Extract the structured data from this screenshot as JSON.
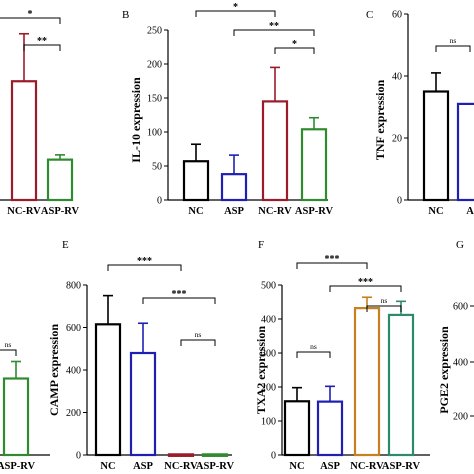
{
  "colors": {
    "NC": "#000000",
    "ASP": "#1f1fb4",
    "NC-RV": "#9b1b2a",
    "ASP-RV": "#2e8b2e",
    "NC-RV_txa2": "#c8801e",
    "ASP-RV_txa2": "#2e8b6a"
  },
  "chart_data": [
    {
      "id": "A",
      "type": "bar",
      "panel_label": "",
      "ylabel": "",
      "categories": [
        "",
        "",
        "NC-RV",
        "ASP-RV"
      ],
      "values": [
        null,
        null,
        50,
        17
      ],
      "errors": [
        null,
        null,
        20,
        2
      ],
      "significance": [
        {
          "pair": [
            1,
            3
          ],
          "label": "*"
        },
        {
          "pair": [
            2,
            3
          ],
          "label": "**"
        }
      ]
    },
    {
      "id": "B",
      "type": "bar",
      "panel_label": "B",
      "ylabel": "IL-10 expression",
      "categories": [
        "NC",
        "ASP",
        "NC-RV",
        "ASP-RV"
      ],
      "values": [
        57,
        38,
        145,
        104
      ],
      "errors": [
        25,
        28,
        50,
        17
      ],
      "ylim": [
        0,
        250
      ],
      "yticks": [
        0,
        50,
        100,
        150,
        200,
        250
      ],
      "significance": [
        {
          "pair": [
            0,
            2
          ],
          "label": "*"
        },
        {
          "pair": [
            1,
            3
          ],
          "label": "**"
        },
        {
          "pair": [
            2,
            3
          ],
          "label": "*"
        }
      ]
    },
    {
      "id": "C",
      "type": "bar",
      "panel_label": "C",
      "ylabel": "TNF expression",
      "categories": [
        "NC",
        "A"
      ],
      "values": [
        35,
        31
      ],
      "errors": [
        6,
        0
      ],
      "ylim": [
        0,
        60
      ],
      "yticks": [
        0,
        20,
        40,
        60
      ],
      "significance": [
        {
          "pair": [
            0,
            1
          ],
          "label": "ns"
        }
      ]
    },
    {
      "id": "D",
      "type": "bar",
      "panel_label": "",
      "ylabel": "",
      "categories": [
        "",
        "",
        "",
        "ASP-RV"
      ],
      "values": [
        null,
        null,
        null,
        270
      ],
      "errors": [
        null,
        null,
        null,
        60
      ],
      "significance": [
        {
          "pair": [
            2,
            3
          ],
          "label": "ns"
        }
      ]
    },
    {
      "id": "E",
      "type": "bar",
      "panel_label": "E",
      "ylabel": "CAMP expression",
      "categories": [
        "NC",
        "ASP",
        "NC-RV",
        "ASP-RV"
      ],
      "values": [
        615,
        480,
        3,
        3
      ],
      "errors": [
        135,
        140,
        0,
        0
      ],
      "ylim": [
        0,
        800
      ],
      "yticks": [
        0,
        200,
        400,
        600,
        800
      ],
      "significance": [
        {
          "pair": [
            0,
            2
          ],
          "label": "***"
        },
        {
          "pair": [
            1,
            3
          ],
          "label": "***"
        },
        {
          "pair": [
            2,
            3
          ],
          "label": "ns"
        }
      ]
    },
    {
      "id": "F",
      "type": "bar",
      "panel_label": "F",
      "ylabel": "TXA2 expression",
      "categories": [
        "NC",
        "ASP",
        "NC-RV",
        "ASP-RV"
      ],
      "values": [
        158,
        157,
        432,
        412
      ],
      "errors": [
        40,
        45,
        32,
        40
      ],
      "ylim": [
        0,
        500
      ],
      "yticks": [
        0,
        100,
        200,
        300,
        400,
        500
      ],
      "significance": [
        {
          "pair": [
            0,
            2
          ],
          "label": "***"
        },
        {
          "pair": [
            0,
            1
          ],
          "label": "ns"
        },
        {
          "pair": [
            1,
            3
          ],
          "label": "***"
        },
        {
          "pair": [
            2,
            3
          ],
          "label": "ns"
        }
      ]
    },
    {
      "id": "G",
      "type": "bar",
      "panel_label": "G",
      "ylabel": "PGE2 expression",
      "categories": [],
      "values": [],
      "errors": [],
      "yticks": [
        200,
        400,
        600
      ]
    }
  ]
}
